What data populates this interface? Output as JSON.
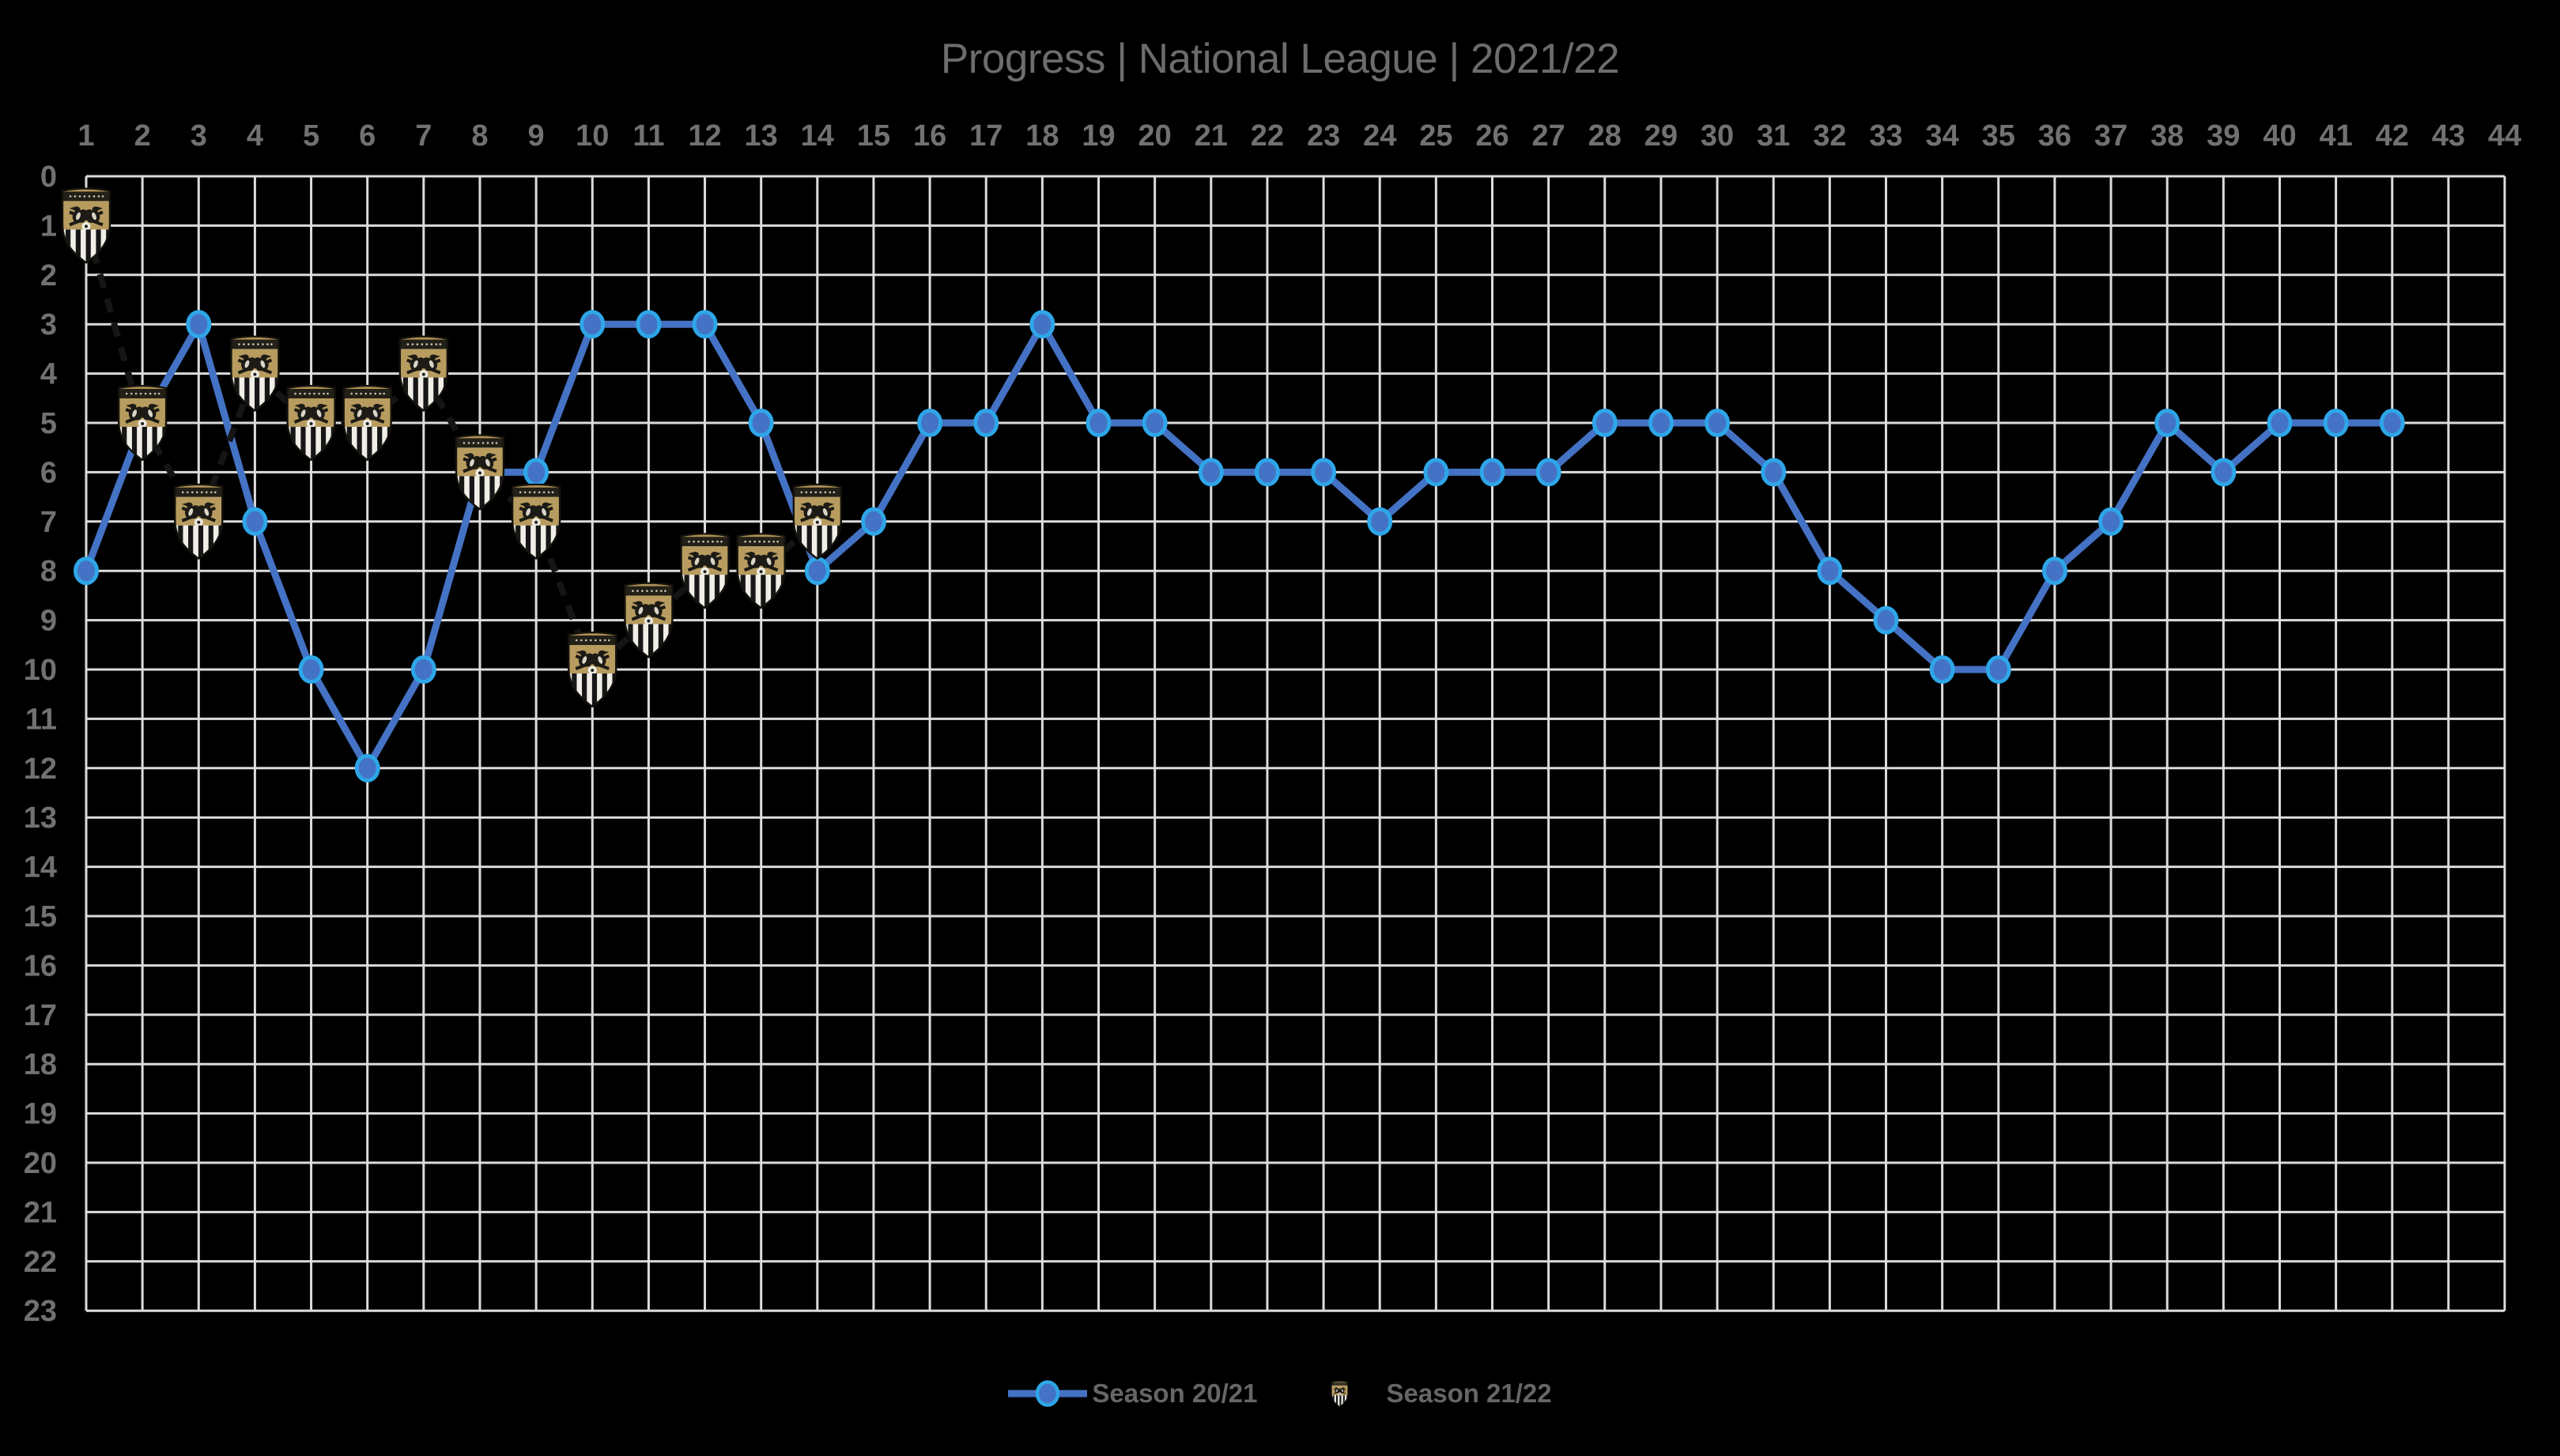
{
  "title": "Progress | National League | 2021/22",
  "legend": [
    {
      "label": "Season 20/21",
      "symbol": "line-with-marker"
    },
    {
      "label": "Season 21/22",
      "symbol": "club-crest"
    }
  ],
  "colors": {
    "background": "#000000",
    "gridline": "#DCDCDC",
    "tick_text": "#717171",
    "title_text": "#6C6C6C",
    "legend_text": "#666666",
    "line_blue": "#4472C4",
    "marker_ring": "#2EA6E8",
    "dashed_line": "#151515",
    "crest_gold": "#B89C5F"
  },
  "chart_data": {
    "type": "line",
    "title": "Progress | National League | 2021/22",
    "xlabel": "",
    "ylabel": "",
    "x_axis_side": "top",
    "y_axis_inverted": true,
    "grid": true,
    "legend_position": "bottom",
    "xlim": [
      1,
      44
    ],
    "ylim": [
      0,
      23
    ],
    "x_ticks": [
      "1",
      "2",
      "3",
      "4",
      "5",
      "6",
      "7",
      "8",
      "9",
      "10",
      "11",
      "12",
      "13",
      "14",
      "15",
      "16",
      "17",
      "18",
      "19",
      "20",
      "21",
      "22",
      "23",
      "24",
      "25",
      "26",
      "27",
      "28",
      "29",
      "30",
      "31",
      "32",
      "33",
      "34",
      "35",
      "36",
      "37",
      "38",
      "39",
      "40",
      "41",
      "42",
      "43",
      "44"
    ],
    "y_ticks": [
      "0",
      "1",
      "2",
      "3",
      "4",
      "5",
      "6",
      "7",
      "8",
      "9",
      "10",
      "11",
      "12",
      "13",
      "14",
      "15",
      "16",
      "17",
      "18",
      "19",
      "20",
      "21",
      "22",
      "23"
    ],
    "series": [
      {
        "name": "Season 20/21",
        "style": "solid",
        "marker": "circle",
        "color": "#4472C4",
        "x_start": 1,
        "values": [
          8,
          5,
          3,
          7,
          10,
          12,
          10,
          6,
          6,
          3,
          3,
          3,
          5,
          8,
          7,
          5,
          5,
          3,
          5,
          5,
          6,
          6,
          6,
          7,
          6,
          6,
          6,
          5,
          5,
          5,
          6,
          8,
          9,
          10,
          10,
          8,
          7,
          5,
          6,
          5,
          5,
          5
        ]
      },
      {
        "name": "Season 21/22",
        "style": "dashed",
        "marker": "club-crest",
        "color": "#151515",
        "x_start": 1,
        "values": [
          1,
          5,
          7,
          4,
          5,
          5,
          4,
          6,
          7,
          10,
          9,
          8,
          8,
          7
        ]
      }
    ]
  }
}
